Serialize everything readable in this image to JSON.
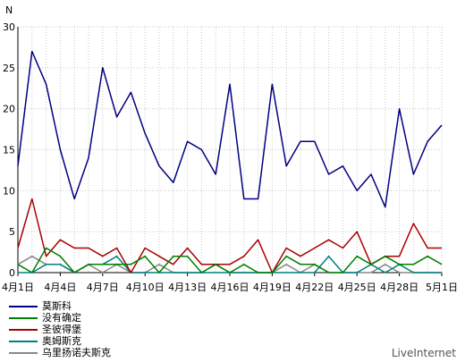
{
  "chart_data": {
    "type": "line",
    "ylabel": "N",
    "ylim": [
      0,
      30
    ],
    "yticks": [
      0,
      5,
      10,
      15,
      20,
      25,
      30
    ],
    "xticks": [
      "4月1日",
      "4月4日",
      "4月7日",
      "4月10日",
      "4月13日",
      "4月16日",
      "4月19日",
      "4月22日",
      "4月25日",
      "4月28日",
      "5月1日"
    ],
    "x": [
      "4月1日",
      "4月2日",
      "4月3日",
      "4月4日",
      "4月5日",
      "4月6日",
      "4月7日",
      "4月8日",
      "4月9日",
      "4月10日",
      "4月11日",
      "4月12日",
      "4月13日",
      "4月14日",
      "4月15日",
      "4月16日",
      "4月17日",
      "4月18日",
      "4月19日",
      "4月20日",
      "4月21日",
      "4月22日",
      "4月23日",
      "4月24日",
      "4月25日",
      "4月26日",
      "4月27日",
      "4月28日",
      "4月29日",
      "4月30日",
      "5月1日"
    ],
    "grid": true,
    "legend_position": "bottom-left",
    "series": [
      {
        "name": "莫斯科",
        "color": "#000080",
        "values": [
          13,
          27,
          23,
          15,
          9,
          14,
          25,
          19,
          22,
          17,
          13,
          11,
          16,
          15,
          12,
          23,
          9,
          9,
          23,
          13,
          16,
          16,
          12,
          13,
          10,
          12,
          8,
          20,
          12,
          16,
          18
        ]
      },
      {
        "name": "没有确定",
        "color": "#008000",
        "values": [
          1,
          0,
          3,
          2,
          0,
          1,
          1,
          1,
          1,
          2,
          0,
          2,
          2,
          0,
          1,
          0,
          1,
          0,
          0,
          2,
          1,
          1,
          0,
          0,
          2,
          1,
          2,
          1,
          1,
          2,
          1
        ]
      },
      {
        "name": "圣彼得堡",
        "color": "#aa0000",
        "values": [
          3,
          9,
          2,
          4,
          3,
          3,
          2,
          3,
          0,
          3,
          2,
          1,
          3,
          1,
          1,
          1,
          2,
          4,
          0,
          3,
          2,
          3,
          4,
          3,
          5,
          1,
          2,
          2,
          6,
          3,
          3
        ]
      },
      {
        "name": "奥姆斯克",
        "color": "#008080",
        "values": [
          0,
          0,
          1,
          1,
          0,
          1,
          1,
          2,
          0,
          0,
          0,
          0,
          0,
          0,
          0,
          0,
          0,
          0,
          0,
          0,
          0,
          0,
          2,
          0,
          0,
          1,
          0,
          1,
          0,
          0,
          0
        ]
      },
      {
        "name": "乌里扬诺夫斯克",
        "color": "#888888",
        "values": [
          1,
          2,
          1,
          1,
          0,
          1,
          0,
          1,
          0,
          0,
          1,
          0,
          0,
          0,
          1,
          0,
          0,
          0,
          0,
          1,
          0,
          1,
          0,
          0,
          0,
          0,
          1,
          0,
          0,
          0,
          0
        ]
      }
    ]
  },
  "brand": "LiveInternet"
}
